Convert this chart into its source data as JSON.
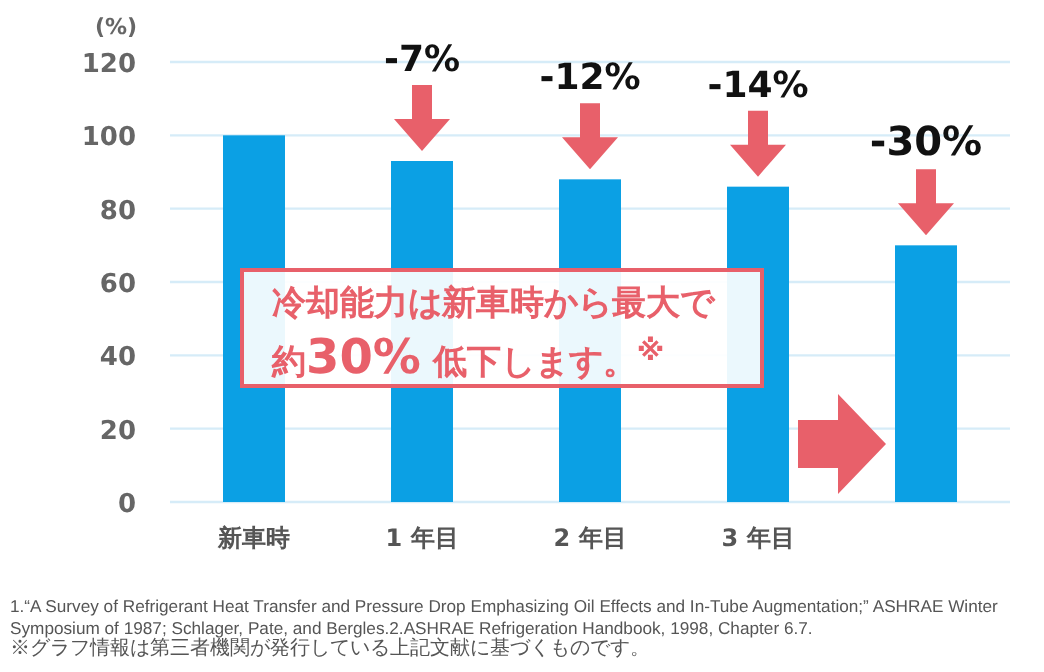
{
  "chart_data": {
    "type": "bar",
    "ylabel": "(%)",
    "categories": [
      "新車時",
      "1 年目",
      "2 年目",
      "3 年目",
      null
    ],
    "values": [
      100,
      93,
      88,
      86,
      70
    ],
    "color": "#0ba0e4",
    "ylim": [
      0,
      120
    ],
    "yticks": [
      0,
      20,
      40,
      60,
      80,
      100,
      120
    ],
    "grid": "y",
    "annotations": [
      {
        "text": "-7%",
        "x": "1 年目",
        "y": 93
      },
      {
        "text": "-12%",
        "x": "2 年目",
        "y": 88
      },
      {
        "text": "-14%",
        "x": "3 年目",
        "y": 86
      },
      "-30%",
      "冷却能力は新車時から最大で約**30%** 低下します。$^{※}$",
      "1.“A Survey of Refrigerant Heat Transfer and Pressure Drop Emphasizing Oil Effects and In-Tube Augmentation;” ASHRAE Winter Symposium of 1987; Schlager, Pate, and Bergles.2.ASHRAE Refrigeration Handbook, 1998, Chapter 6.7.",
      "※グラフ情報は第三者機関が発行している上記文献に基づくものです。"
    ]
  }
}
